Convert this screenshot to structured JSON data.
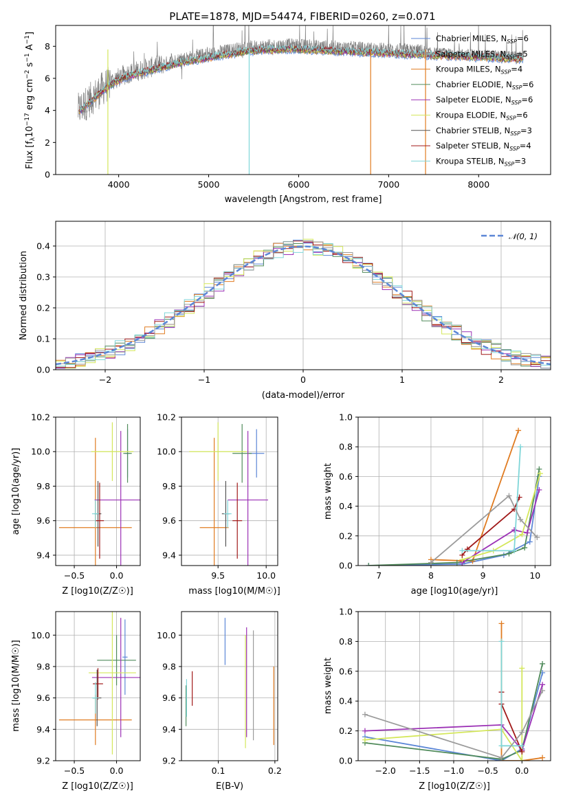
{
  "colors": {
    "Chabrier MILES": "#5b86d6",
    "Salpeter MILES": "#9b9b9b",
    "Kroupa MILES": "#e07b20",
    "Chabrier ELODIE": "#4f8a5a",
    "Salpeter ELODIE": "#9b30b5",
    "Kroupa ELODIE": "#d4e75a",
    "Chabrier STELIB": "#555555",
    "Salpeter STELIB": "#a01818",
    "Kroupa STELIB": "#7fd6d8"
  },
  "chart_data": [
    {
      "id": "spectrum",
      "type": "line",
      "title": "PLATE=1878, MJD=54474, FIBERID=0260, z=0.071",
      "xlabel": "wavelength [Angstrom, rest frame]",
      "ylabel_parts": [
        "Flux [f",
        "λ",
        "10",
        "−17",
        " erg cm",
        "−2",
        " s",
        "−1",
        " A",
        "−1",
        "]"
      ],
      "xlim": [
        3300,
        8800
      ],
      "ylim": [
        0,
        9.3
      ],
      "xticks": [
        "4000",
        "5000",
        "6000",
        "7000",
        "8000"
      ],
      "yticks": [
        "0",
        "2",
        "4",
        "6",
        "8"
      ],
      "legend_position": "upper-right",
      "legend": [
        {
          "name": "Chabrier MILES",
          "nssp": "6"
        },
        {
          "name": "Salpeter MILES",
          "nssp": "5"
        },
        {
          "name": "Kroupa MILES",
          "nssp": "4"
        },
        {
          "name": "Chabrier ELODIE",
          "nssp": "6"
        },
        {
          "name": "Salpeter ELODIE",
          "nssp": "6"
        },
        {
          "name": "Kroupa ELODIE",
          "nssp": "6"
        },
        {
          "name": "Chabrier STELIB",
          "nssp": "3"
        },
        {
          "name": "Salpeter STELIB",
          "nssp": "4"
        },
        {
          "name": "Kroupa STELIB",
          "nssp": "3"
        }
      ],
      "continuum": {
        "x": [
          3550,
          3650,
          3750,
          3850,
          3950,
          4100,
          4300,
          4500,
          4700,
          4900,
          5100,
          5300,
          5500,
          5700,
          5900,
          6100,
          6300,
          6500,
          6700,
          6900,
          7100,
          7300,
          7500,
          7700,
          7900,
          8100,
          8300,
          8500
        ],
        "y": [
          4.0,
          4.5,
          5.0,
          5.5,
          5.9,
          6.3,
          6.6,
          6.9,
          7.2,
          7.4,
          7.6,
          7.8,
          7.95,
          8.0,
          8.05,
          8.0,
          7.95,
          7.9,
          7.85,
          7.8,
          7.75,
          7.7,
          7.65,
          7.6,
          7.55,
          7.5,
          7.45,
          7.4
        ]
      }
    },
    {
      "id": "residuals",
      "type": "histogram",
      "xlabel": "(data-model)/error",
      "ylabel": "Normed distribution",
      "xlim": [
        -2.5,
        2.5
      ],
      "ylim": [
        0,
        0.48
      ],
      "xticks": [
        "−2",
        "−1",
        "0",
        "1",
        "2"
      ],
      "yticks": [
        "0.0",
        "0.1",
        "0.2",
        "0.3",
        "0.4"
      ],
      "grid": true,
      "legend_position": "upper-right",
      "legend": [
        "𝒩(0, 1)"
      ],
      "bins": [
        -2.5,
        -2.4,
        -2.3,
        -2.2,
        -2.1,
        -2.0,
        -1.9,
        -1.8,
        -1.7,
        -1.6,
        -1.5,
        -1.4,
        -1.3,
        -1.2,
        -1.1,
        -1.0,
        -0.9,
        -0.8,
        -0.7,
        -0.6,
        -0.5,
        -0.4,
        -0.3,
        -0.2,
        -0.1,
        0.0,
        0.1,
        0.2,
        0.3,
        0.4,
        0.5,
        0.6,
        0.7,
        0.8,
        0.9,
        1.0,
        1.1,
        1.2,
        1.3,
        1.4,
        1.5,
        1.6,
        1.7,
        1.8,
        1.9,
        2.0,
        2.1,
        2.2,
        2.3,
        2.4,
        2.5
      ],
      "gaussian": {
        "mean": 0,
        "sigma": 1
      }
    },
    {
      "id": "age-vs-Z",
      "type": "errorbar",
      "xlabel": "Z [log10(Z/Z☉)]",
      "ylabel": "age  [log10(age/yr)]",
      "xlim": [
        -0.72,
        0.28
      ],
      "ylim": [
        9.34,
        10.2
      ],
      "xticks": [
        "−0.5",
        "0.0"
      ],
      "yticks": [
        "9.4",
        "9.6",
        "9.8",
        "10.0",
        "10.2"
      ],
      "points": [
        {
          "model": "Chabrier MILES",
          "x": 0.13,
          "xerr": 0.03,
          "y": 9.99,
          "yerr": 0.14
        },
        {
          "model": "Kroupa MILES",
          "x": -0.25,
          "xerr": 0.43,
          "y": 9.56,
          "yerr": 0.52
        },
        {
          "model": "Chabrier ELODIE",
          "x": 0.13,
          "xerr": 0.05,
          "y": 9.99,
          "yerr": 0.17
        },
        {
          "model": "Salpeter ELODIE",
          "x": 0.05,
          "xerr": 0.31,
          "y": 9.72,
          "yerr": 0.4
        },
        {
          "model": "Kroupa ELODIE",
          "x": -0.05,
          "xerr": 0.25,
          "y": 10.0,
          "yerr": 0.17
        },
        {
          "model": "Chabrier STELIB",
          "x": -0.22,
          "xerr": 0.04,
          "y": 9.64,
          "yerr": 0.19
        },
        {
          "model": "Salpeter STELIB",
          "x": -0.2,
          "xerr": 0.05,
          "y": 9.6,
          "yerr": 0.22
        },
        {
          "model": "Kroupa STELIB",
          "x": -0.25,
          "xerr": 0.04,
          "y": 9.64,
          "yerr": 0.08
        }
      ]
    },
    {
      "id": "age-vs-mass",
      "type": "errorbar",
      "xlabel": "mass [log10(M/M☉)]",
      "xlim": [
        9.12,
        10.12
      ],
      "ylim": [
        9.34,
        10.2
      ],
      "xticks": [
        "9.5",
        "10.0"
      ],
      "yticks": [
        "9.4",
        "9.6",
        "9.8",
        "10.0",
        "10.2"
      ],
      "points": [
        {
          "model": "Chabrier MILES",
          "x": 9.9,
          "xerr": 0.08,
          "y": 9.99,
          "yerr": 0.14
        },
        {
          "model": "Kroupa MILES",
          "x": 9.46,
          "xerr": 0.15,
          "y": 9.56,
          "yerr": 0.52
        },
        {
          "model": "Chabrier ELODIE",
          "x": 9.75,
          "xerr": 0.1,
          "y": 9.99,
          "yerr": 0.17
        },
        {
          "model": "Salpeter ELODIE",
          "x": 9.81,
          "xerr": 0.21,
          "y": 9.72,
          "yerr": 0.4
        },
        {
          "model": "Kroupa ELODIE",
          "x": 9.5,
          "xerr": 0.3,
          "y": 10.0,
          "yerr": 0.17
        },
        {
          "model": "Chabrier STELIB",
          "x": 9.58,
          "xerr": 0.04,
          "y": 9.64,
          "yerr": 0.19
        },
        {
          "model": "Salpeter STELIB",
          "x": 9.7,
          "xerr": 0.05,
          "y": 9.6,
          "yerr": 0.22
        },
        {
          "model": "Kroupa STELIB",
          "x": 9.6,
          "xerr": 0.04,
          "y": 9.64,
          "yerr": 0.08
        }
      ]
    },
    {
      "id": "weight-vs-age",
      "type": "line",
      "xlabel": "age  [log10(age/yr)]",
      "ylabel": "mass weight",
      "xlim": [
        6.6,
        10.3
      ],
      "ylim": [
        0,
        1.0
      ],
      "xticks": [
        "7",
        "8",
        "9",
        "10"
      ],
      "yticks": [
        "0.0",
        "0.2",
        "0.4",
        "0.6",
        "0.8",
        "1.0"
      ],
      "grid": true,
      "series": [
        {
          "model": "Chabrier MILES",
          "x": [
            6.8,
            8.6,
            9.4,
            9.9,
            10.08
          ],
          "y": [
            0.0,
            0.01,
            0.07,
            0.16,
            0.6
          ]
        },
        {
          "model": "Kroupa MILES",
          "x": [
            8.0,
            8.8,
            9.68
          ],
          "y": [
            0.04,
            0.03,
            0.91
          ]
        },
        {
          "model": "Chabrier ELODIE",
          "x": [
            6.8,
            8.5,
            9.5,
            9.8,
            10.08
          ],
          "y": [
            0.0,
            0.02,
            0.08,
            0.12,
            0.65
          ]
        },
        {
          "model": "Salpeter ELODIE",
          "x": [
            8.6,
            9.6,
            9.85,
            10.08
          ],
          "y": [
            0.02,
            0.24,
            0.22,
            0.51
          ]
        },
        {
          "model": "Kroupa ELODIE",
          "x": [
            8.6,
            9.2,
            9.75,
            10.1
          ],
          "y": [
            0.04,
            0.1,
            0.21,
            0.62
          ]
        },
        {
          "model": "Salpeter STELIB",
          "x": [
            8.6,
            8.7,
            9.6,
            9.7
          ],
          "y": [
            0.07,
            0.11,
            0.38,
            0.46
          ]
        },
        {
          "model": "Kroupa STELIB",
          "x": [
            8.6,
            9.6,
            9.72
          ],
          "y": [
            0.1,
            0.1,
            0.8
          ]
        },
        {
          "model": "Salpeter MILES",
          "x": [
            8.0,
            9.5,
            9.72,
            10.04
          ],
          "y": [
            0.02,
            0.47,
            0.31,
            0.19
          ]
        }
      ]
    },
    {
      "id": "mass-vs-Z",
      "type": "errorbar",
      "xlabel": "Z [log10(Z/Z☉)]",
      "ylabel": "mass [log10(M/M☉)]",
      "xlim": [
        -0.72,
        0.28
      ],
      "ylim": [
        9.2,
        10.15
      ],
      "xticks": [
        "−0.5",
        "0.0"
      ],
      "yticks": [
        "9.2",
        "9.4",
        "9.6",
        "9.8",
        "10.0"
      ],
      "points": [
        {
          "model": "Chabrier MILES",
          "x": 0.1,
          "xerr": 0.03,
          "y": 9.86,
          "yerr": 0.24
        },
        {
          "model": "Kroupa MILES",
          "x": -0.25,
          "xerr": 0.43,
          "y": 9.46,
          "yerr": 0.16
        },
        {
          "model": "Chabrier ELODIE",
          "x": 0.0,
          "xerr": 0.23,
          "y": 9.84,
          "yerr": 0.16
        },
        {
          "model": "Salpeter ELODIE",
          "x": 0.05,
          "xerr": 0.34,
          "y": 9.73,
          "yerr": 0.38
        },
        {
          "model": "Kroupa ELODIE",
          "x": -0.05,
          "xerr": 0.28,
          "y": 9.76,
          "yerr": 0.52
        },
        {
          "model": "Chabrier STELIB",
          "x": -0.23,
          "xerr": 0.05,
          "y": 9.6,
          "yerr": 0.18
        },
        {
          "model": "Salpeter STELIB",
          "x": -0.22,
          "xerr": 0.06,
          "y": 9.69,
          "yerr": 0.1
        },
        {
          "model": "Kroupa STELIB",
          "x": -0.25,
          "xerr": 0.04,
          "y": 9.6,
          "yerr": 0.1
        }
      ]
    },
    {
      "id": "mass-vs-EBV",
      "type": "errorbar",
      "xlabel": "E(B-V)",
      "xlim": [
        0.035,
        0.205
      ],
      "ylim": [
        9.2,
        10.15
      ],
      "xticks": [
        "0.1",
        "0.2"
      ],
      "yticks": [
        "9.2",
        "9.4",
        "9.6",
        "9.8",
        "10.0"
      ],
      "points": [
        {
          "model": "Chabrier MILES",
          "x": 0.112,
          "y": 9.96,
          "yerr": 0.15
        },
        {
          "model": "Kroupa MILES",
          "x": 0.198,
          "y": 9.55,
          "yerr": 0.25
        },
        {
          "model": "Chabrier ELODIE",
          "x": 0.043,
          "y": 9.55,
          "yerr": 0.13
        },
        {
          "model": "Salpeter ELODIE",
          "x": 0.15,
          "y": 9.7,
          "yerr": 0.35
        },
        {
          "model": "Kroupa ELODIE",
          "x": 0.148,
          "y": 9.64,
          "yerr": 0.36
        },
        {
          "model": "Salpeter MILES",
          "x": 0.162,
          "y": 9.68,
          "yerr": 0.35
        },
        {
          "model": "Salpeter STELIB",
          "x": 0.054,
          "y": 9.66,
          "yerr": 0.11
        },
        {
          "model": "Kroupa STELIB",
          "x": 0.044,
          "y": 9.6,
          "yerr": 0.12
        }
      ]
    },
    {
      "id": "weight-vs-Z",
      "type": "line",
      "xlabel": "Z [log10(Z/Z☉)]",
      "ylabel": "mass weight",
      "xlim": [
        -2.4,
        0.42
      ],
      "ylim": [
        0,
        1.0
      ],
      "xticks": [
        "−2.0",
        "−1.5",
        "−1.0",
        "−0.5",
        "0.0"
      ],
      "yticks": [
        "0.0",
        "0.2",
        "0.4",
        "0.6",
        "0.8",
        "1.0"
      ],
      "grid": true,
      "series": [
        {
          "model": "Chabrier MILES",
          "x": [
            -2.3,
            -0.3,
            0.0,
            0.3
          ],
          "y": [
            0.16,
            0.0,
            0.08,
            0.59
          ]
        },
        {
          "model": "Kroupa MILES",
          "x": [
            -0.3,
            -0.3,
            0.0,
            0.3
          ],
          "y": [
            0.92,
            0.0,
            0.0,
            0.02
          ]
        },
        {
          "model": "Chabrier ELODIE",
          "x": [
            -2.3,
            -0.3,
            0.0,
            0.3
          ],
          "y": [
            0.12,
            0.01,
            0.07,
            0.65
          ]
        },
        {
          "model": "Salpeter ELODIE",
          "x": [
            -2.3,
            -0.3,
            0.0,
            0.3
          ],
          "y": [
            0.2,
            0.24,
            0.07,
            0.51
          ]
        },
        {
          "model": "Kroupa ELODIE",
          "x": [
            -2.3,
            -0.3,
            0.0,
            0.0
          ],
          "y": [
            0.14,
            0.21,
            0.0,
            0.62
          ]
        },
        {
          "model": "Salpeter STELIB",
          "x": [
            -0.3,
            -0.3,
            0.0
          ],
          "y": [
            0.46,
            0.38,
            0.06
          ]
        },
        {
          "model": "Kroupa STELIB",
          "x": [
            -0.3,
            -0.3,
            0.0
          ],
          "y": [
            0.8,
            0.1,
            0.1
          ]
        },
        {
          "model": "Salpeter MILES",
          "x": [
            -2.3,
            -0.3,
            0.0,
            0.3
          ],
          "y": [
            0.31,
            0.02,
            0.19,
            0.47
          ]
        }
      ]
    }
  ]
}
